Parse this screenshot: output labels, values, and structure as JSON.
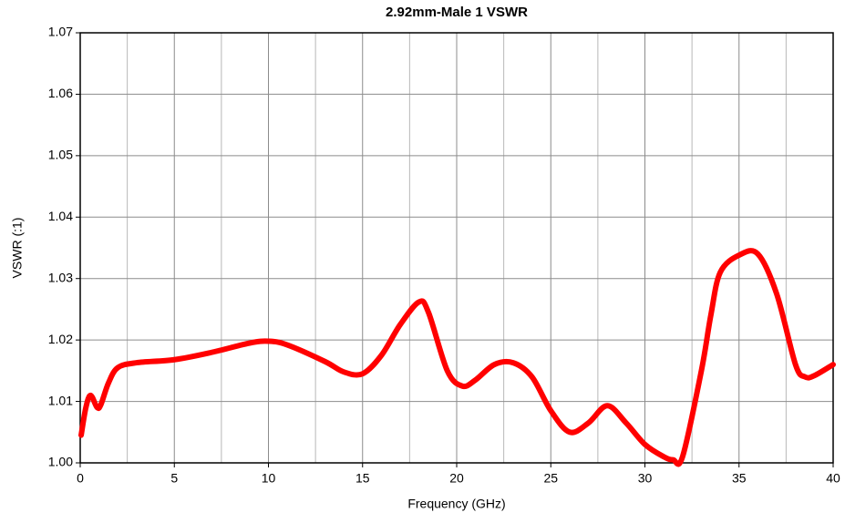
{
  "chart_data": {
    "type": "line",
    "title": "2.92mm-Male 1 VSWR",
    "x_label": "Frequency (GHz)",
    "y_label": "VSWR (:1)",
    "series": [
      {
        "name": "VSWR",
        "color": "#ff0000",
        "x": [
          0.05,
          0.3,
          0.55,
          0.9,
          1.1,
          1.5,
          2,
          3,
          5,
          7,
          9,
          10,
          11,
          13,
          14,
          15,
          16,
          17,
          18,
          18.5,
          19.5,
          20.3,
          21,
          22,
          23,
          24,
          25,
          26,
          27,
          28,
          29,
          30,
          31,
          31.5,
          32,
          33,
          33.5,
          34,
          35,
          36,
          37,
          38,
          38.5,
          39,
          40
        ],
        "values": [
          1.0045,
          1.009,
          1.011,
          1.009,
          1.0095,
          1.013,
          1.0155,
          1.0163,
          1.0168,
          1.018,
          1.0195,
          1.0198,
          1.0192,
          1.0165,
          1.0148,
          1.0145,
          1.0175,
          1.0225,
          1.0262,
          1.0245,
          1.015,
          1.0125,
          1.0135,
          1.016,
          1.0163,
          1.014,
          1.0085,
          1.005,
          1.0065,
          1.0093,
          1.0065,
          1.003,
          1.001,
          1.0005,
          1.001,
          1.015,
          1.024,
          1.031,
          1.0338,
          1.034,
          1.0275,
          1.016,
          1.014,
          1.0142,
          1.016
        ]
      }
    ],
    "xlim": [
      0,
      40
    ],
    "xticks": [
      0,
      5,
      10,
      15,
      20,
      25,
      30,
      35,
      40
    ],
    "x_minor_grid": [
      2.5,
      7.5,
      12.5,
      17.5,
      22.5,
      27.5,
      32.5,
      37.5
    ],
    "ylim": [
      1,
      1.07
    ],
    "yticks": [
      {
        "value": 1,
        "label": "1.00"
      },
      1.01,
      1.02,
      1.03,
      1.04,
      1.05,
      1.06,
      1.07
    ],
    "grid": true
  }
}
